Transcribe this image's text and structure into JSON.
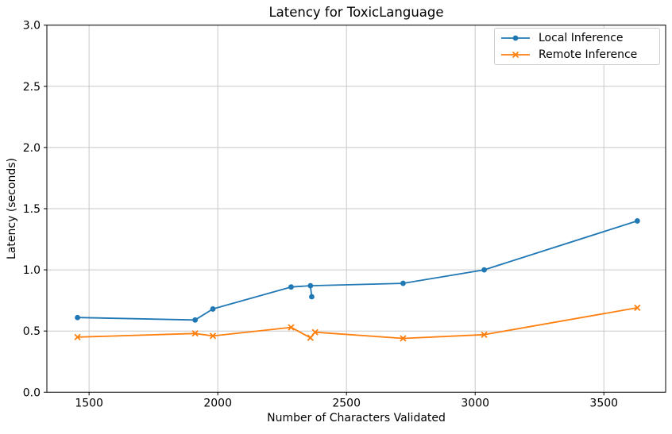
{
  "chart_data": {
    "type": "line",
    "title": "Latency for ToxicLanguage",
    "xlabel": "Number of Characters Validated",
    "ylabel": "Latency (seconds)",
    "xlim": [
      1336,
      3740
    ],
    "ylim": [
      0,
      3
    ],
    "xticks": {
      "values": [
        1500,
        2000,
        2500,
        3000,
        3500
      ],
      "labels": [
        "1500",
        "2000",
        "2500",
        "3000",
        "3500"
      ]
    },
    "yticks": {
      "values": [
        0,
        0.5,
        1,
        1.5,
        2,
        2.5,
        3
      ],
      "labels": [
        "0.0",
        "0.5",
        "1.0",
        "1.5",
        "2.0",
        "2.5",
        "3.0"
      ]
    },
    "grid": true,
    "legend_position": "upper right",
    "series": [
      {
        "name": "Local Inference",
        "color": "#1f77b4",
        "marker": "circle",
        "points": [
          [
            1455,
            0.61
          ],
          [
            1912,
            0.59
          ],
          [
            1981,
            0.68
          ],
          [
            2285,
            0.86
          ],
          [
            2360,
            0.87
          ],
          [
            2365,
            0.78
          ],
          [
            2720,
            0.89
          ],
          [
            3035,
            1.0
          ],
          [
            3630,
            1.4
          ]
        ],
        "path": [
          [
            1455,
            0.61
          ],
          [
            1912,
            0.59
          ],
          [
            1981,
            0.68
          ],
          [
            2285,
            0.86
          ],
          [
            2360,
            0.87
          ],
          [
            2365,
            0.78
          ],
          [
            2360,
            0.87
          ],
          [
            2720,
            0.89
          ],
          [
            3035,
            1.0
          ],
          [
            3630,
            1.4
          ]
        ]
      },
      {
        "name": "Remote Inference",
        "color": "#ff7f0e",
        "marker": "x",
        "points": [
          [
            1455,
            0.45
          ],
          [
            1912,
            0.48
          ],
          [
            1981,
            0.46
          ],
          [
            2285,
            0.53
          ],
          [
            2360,
            0.445
          ],
          [
            2378,
            0.49
          ],
          [
            2720,
            0.44
          ],
          [
            3035,
            0.47
          ],
          [
            3630,
            0.69
          ]
        ],
        "path": [
          [
            1455,
            0.45
          ],
          [
            1912,
            0.48
          ],
          [
            1981,
            0.46
          ],
          [
            2285,
            0.53
          ],
          [
            2360,
            0.445
          ],
          [
            2378,
            0.49
          ],
          [
            2720,
            0.44
          ],
          [
            3035,
            0.47
          ],
          [
            3630,
            0.69
          ]
        ]
      }
    ],
    "colors": {
      "grid": "#c8c8c8",
      "spine": "#000000",
      "text": "#000000",
      "legend_border": "#cccccc",
      "background": "#ffffff"
    }
  }
}
